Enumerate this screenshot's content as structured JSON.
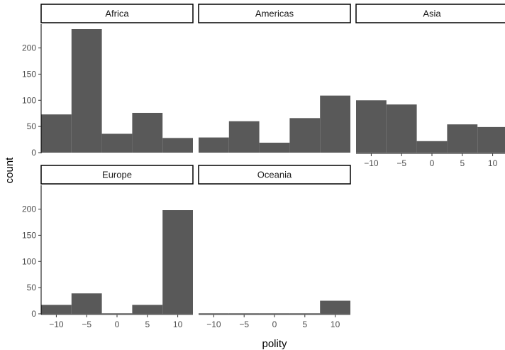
{
  "chart_data": {
    "type": "bar",
    "subtype": "faceted-histogram",
    "xlabel": "polity",
    "ylabel": "count",
    "bin_width": 5,
    "bins": [
      -10,
      -5,
      0,
      5,
      10
    ],
    "x_ticks": [
      -10,
      -5,
      0,
      5,
      10
    ],
    "x_tick_labels": [
      "−10",
      "−5",
      "0",
      "5",
      "10"
    ],
    "xlim": [
      -12.5,
      12.5
    ],
    "y_ticks": [
      0,
      50,
      100,
      150,
      200
    ],
    "y_tick_labels": [
      "0",
      "50",
      "100",
      "150",
      "200"
    ],
    "ylim": [
      0,
      236
    ],
    "grid": false,
    "bar_color": "#595959",
    "panels": [
      {
        "name": "Africa",
        "values": [
          73,
          236,
          36,
          76,
          28
        ]
      },
      {
        "name": "Americas",
        "values": [
          29,
          60,
          19,
          66,
          109
        ]
      },
      {
        "name": "Asia",
        "values": [
          100,
          92,
          22,
          54,
          49
        ]
      },
      {
        "name": "Europe",
        "values": [
          17,
          39,
          1,
          17,
          198
        ]
      },
      {
        "name": "Oceania",
        "values": [
          1,
          1,
          1,
          1,
          25
        ]
      }
    ]
  }
}
